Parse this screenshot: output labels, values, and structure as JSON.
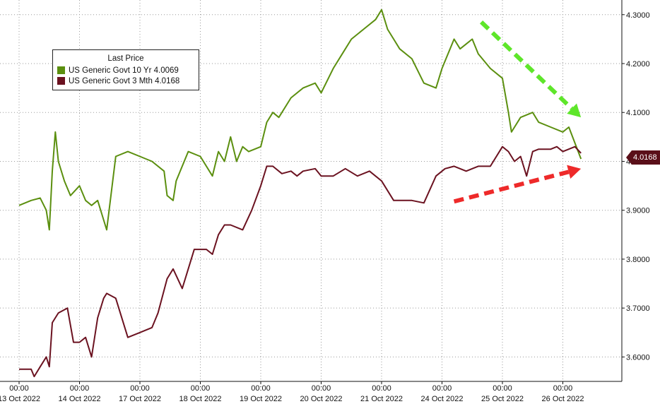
{
  "chart_data": {
    "type": "line",
    "title": "",
    "xlabel": "",
    "ylabel": "",
    "ylim": [
      3.55,
      4.33
    ],
    "yticks": [
      "4.3000",
      "4.2000",
      "4.1000",
      "4.0000",
      "3.9000",
      "3.8000",
      "3.7000",
      "3.6000"
    ],
    "ytick_values": [
      4.3,
      4.2,
      4.1,
      4.0,
      3.9,
      3.8,
      3.7,
      3.6
    ],
    "xticks": [
      {
        "time": "00:00",
        "date": "13 Oct 2022"
      },
      {
        "time": "00:00",
        "date": "14 Oct 2022"
      },
      {
        "time": "00:00",
        "date": "17 Oct 2022"
      },
      {
        "time": "00:00",
        "date": "18 Oct 2022"
      },
      {
        "time": "00:00",
        "date": "19 Oct 2022"
      },
      {
        "time": "00:00",
        "date": "20 Oct 2022"
      },
      {
        "time": "00:00",
        "date": "21 Oct 2022"
      },
      {
        "time": "00:00",
        "date": "24 Oct 2022"
      },
      {
        "time": "00:00",
        "date": "25 Oct 2022"
      },
      {
        "time": "00:00",
        "date": "26 Oct 2022"
      }
    ],
    "grid": true,
    "legend_position": "top-left",
    "legend_title": "Last Price",
    "last_price_label": "4.0168",
    "series": [
      {
        "name": "US Generic Govt 10 Yr",
        "last": "4.0069",
        "color": "#5b8f0f",
        "x": [
          0.0,
          0.2,
          0.35,
          0.45,
          0.5,
          0.55,
          0.6,
          0.65,
          0.75,
          0.85,
          1.0,
          1.1,
          1.2,
          1.3,
          1.4,
          1.45,
          1.6,
          1.8,
          2.0,
          2.2,
          2.4,
          2.45,
          2.55,
          2.6,
          2.8,
          3.0,
          3.2,
          3.3,
          3.4,
          3.5,
          3.6,
          3.7,
          3.8,
          4.0,
          4.1,
          4.2,
          4.3,
          4.5,
          4.7,
          4.9,
          5.0,
          5.2,
          5.35,
          5.5,
          5.7,
          5.9,
          6.0,
          6.1,
          6.2,
          6.3,
          6.5,
          6.7,
          6.9,
          7.0,
          7.2,
          7.3,
          7.4,
          7.5,
          7.6,
          7.8,
          8.0,
          8.1,
          8.15,
          8.3,
          8.5,
          8.6,
          8.8,
          9.0,
          9.1,
          9.3
        ],
        "values": [
          3.91,
          3.92,
          3.925,
          3.9,
          3.86,
          3.98,
          4.06,
          4.0,
          3.96,
          3.93,
          3.95,
          3.92,
          3.91,
          3.92,
          3.88,
          3.86,
          4.01,
          4.02,
          4.01,
          4.0,
          3.98,
          3.93,
          3.92,
          3.96,
          4.02,
          4.01,
          3.97,
          4.02,
          4.0,
          4.05,
          4.0,
          4.03,
          4.02,
          4.03,
          4.08,
          4.1,
          4.09,
          4.13,
          4.15,
          4.16,
          4.14,
          4.19,
          4.22,
          4.25,
          4.27,
          4.29,
          4.31,
          4.27,
          4.25,
          4.23,
          4.21,
          4.16,
          4.15,
          4.19,
          4.25,
          4.23,
          4.24,
          4.25,
          4.22,
          4.19,
          4.17,
          4.1,
          4.06,
          4.09,
          4.1,
          4.08,
          4.07,
          4.06,
          4.07,
          4.005
        ]
      },
      {
        "name": "US Generic Govt 3 Mth",
        "last": "4.0168",
        "color": "#6b1220",
        "x": [
          0.0,
          0.2,
          0.25,
          0.35,
          0.45,
          0.5,
          0.55,
          0.65,
          0.8,
          0.9,
          1.0,
          1.1,
          1.2,
          1.3,
          1.4,
          1.45,
          1.6,
          1.8,
          2.0,
          2.2,
          2.3,
          2.45,
          2.55,
          2.7,
          2.9,
          3.1,
          3.2,
          3.3,
          3.4,
          3.5,
          3.7,
          3.85,
          4.0,
          4.1,
          4.2,
          4.35,
          4.5,
          4.6,
          4.7,
          4.9,
          5.0,
          5.2,
          5.4,
          5.6,
          5.8,
          6.0,
          6.2,
          6.3,
          6.5,
          6.7,
          6.9,
          7.0,
          7.05,
          7.2,
          7.4,
          7.5,
          7.6,
          7.8,
          8.0,
          8.1,
          8.2,
          8.3,
          8.4,
          8.5,
          8.6,
          8.8,
          8.9,
          9.0,
          9.2,
          9.3
        ],
        "values": [
          3.575,
          3.575,
          3.56,
          3.58,
          3.6,
          3.58,
          3.67,
          3.69,
          3.7,
          3.63,
          3.63,
          3.64,
          3.6,
          3.68,
          3.72,
          3.73,
          3.72,
          3.64,
          3.65,
          3.66,
          3.69,
          3.76,
          3.78,
          3.74,
          3.82,
          3.82,
          3.81,
          3.85,
          3.87,
          3.87,
          3.86,
          3.9,
          3.95,
          3.99,
          3.99,
          3.975,
          3.98,
          3.97,
          3.98,
          3.985,
          3.97,
          3.97,
          3.985,
          3.97,
          3.98,
          3.96,
          3.92,
          3.92,
          3.92,
          3.915,
          3.97,
          3.98,
          3.985,
          3.99,
          3.98,
          3.985,
          3.99,
          3.99,
          4.03,
          4.02,
          4.0,
          4.01,
          3.97,
          4.02,
          4.025,
          4.025,
          4.03,
          4.02,
          4.03,
          4.0168
        ]
      }
    ],
    "annotations": [
      {
        "kind": "arrow",
        "color": "#5ee62a",
        "from": [
          7.65,
          4.285
        ],
        "to": [
          9.3,
          4.09
        ]
      },
      {
        "kind": "arrow",
        "color": "#ee2a2a",
        "from": [
          7.2,
          3.918
        ],
        "to": [
          9.3,
          3.985
        ]
      }
    ]
  }
}
